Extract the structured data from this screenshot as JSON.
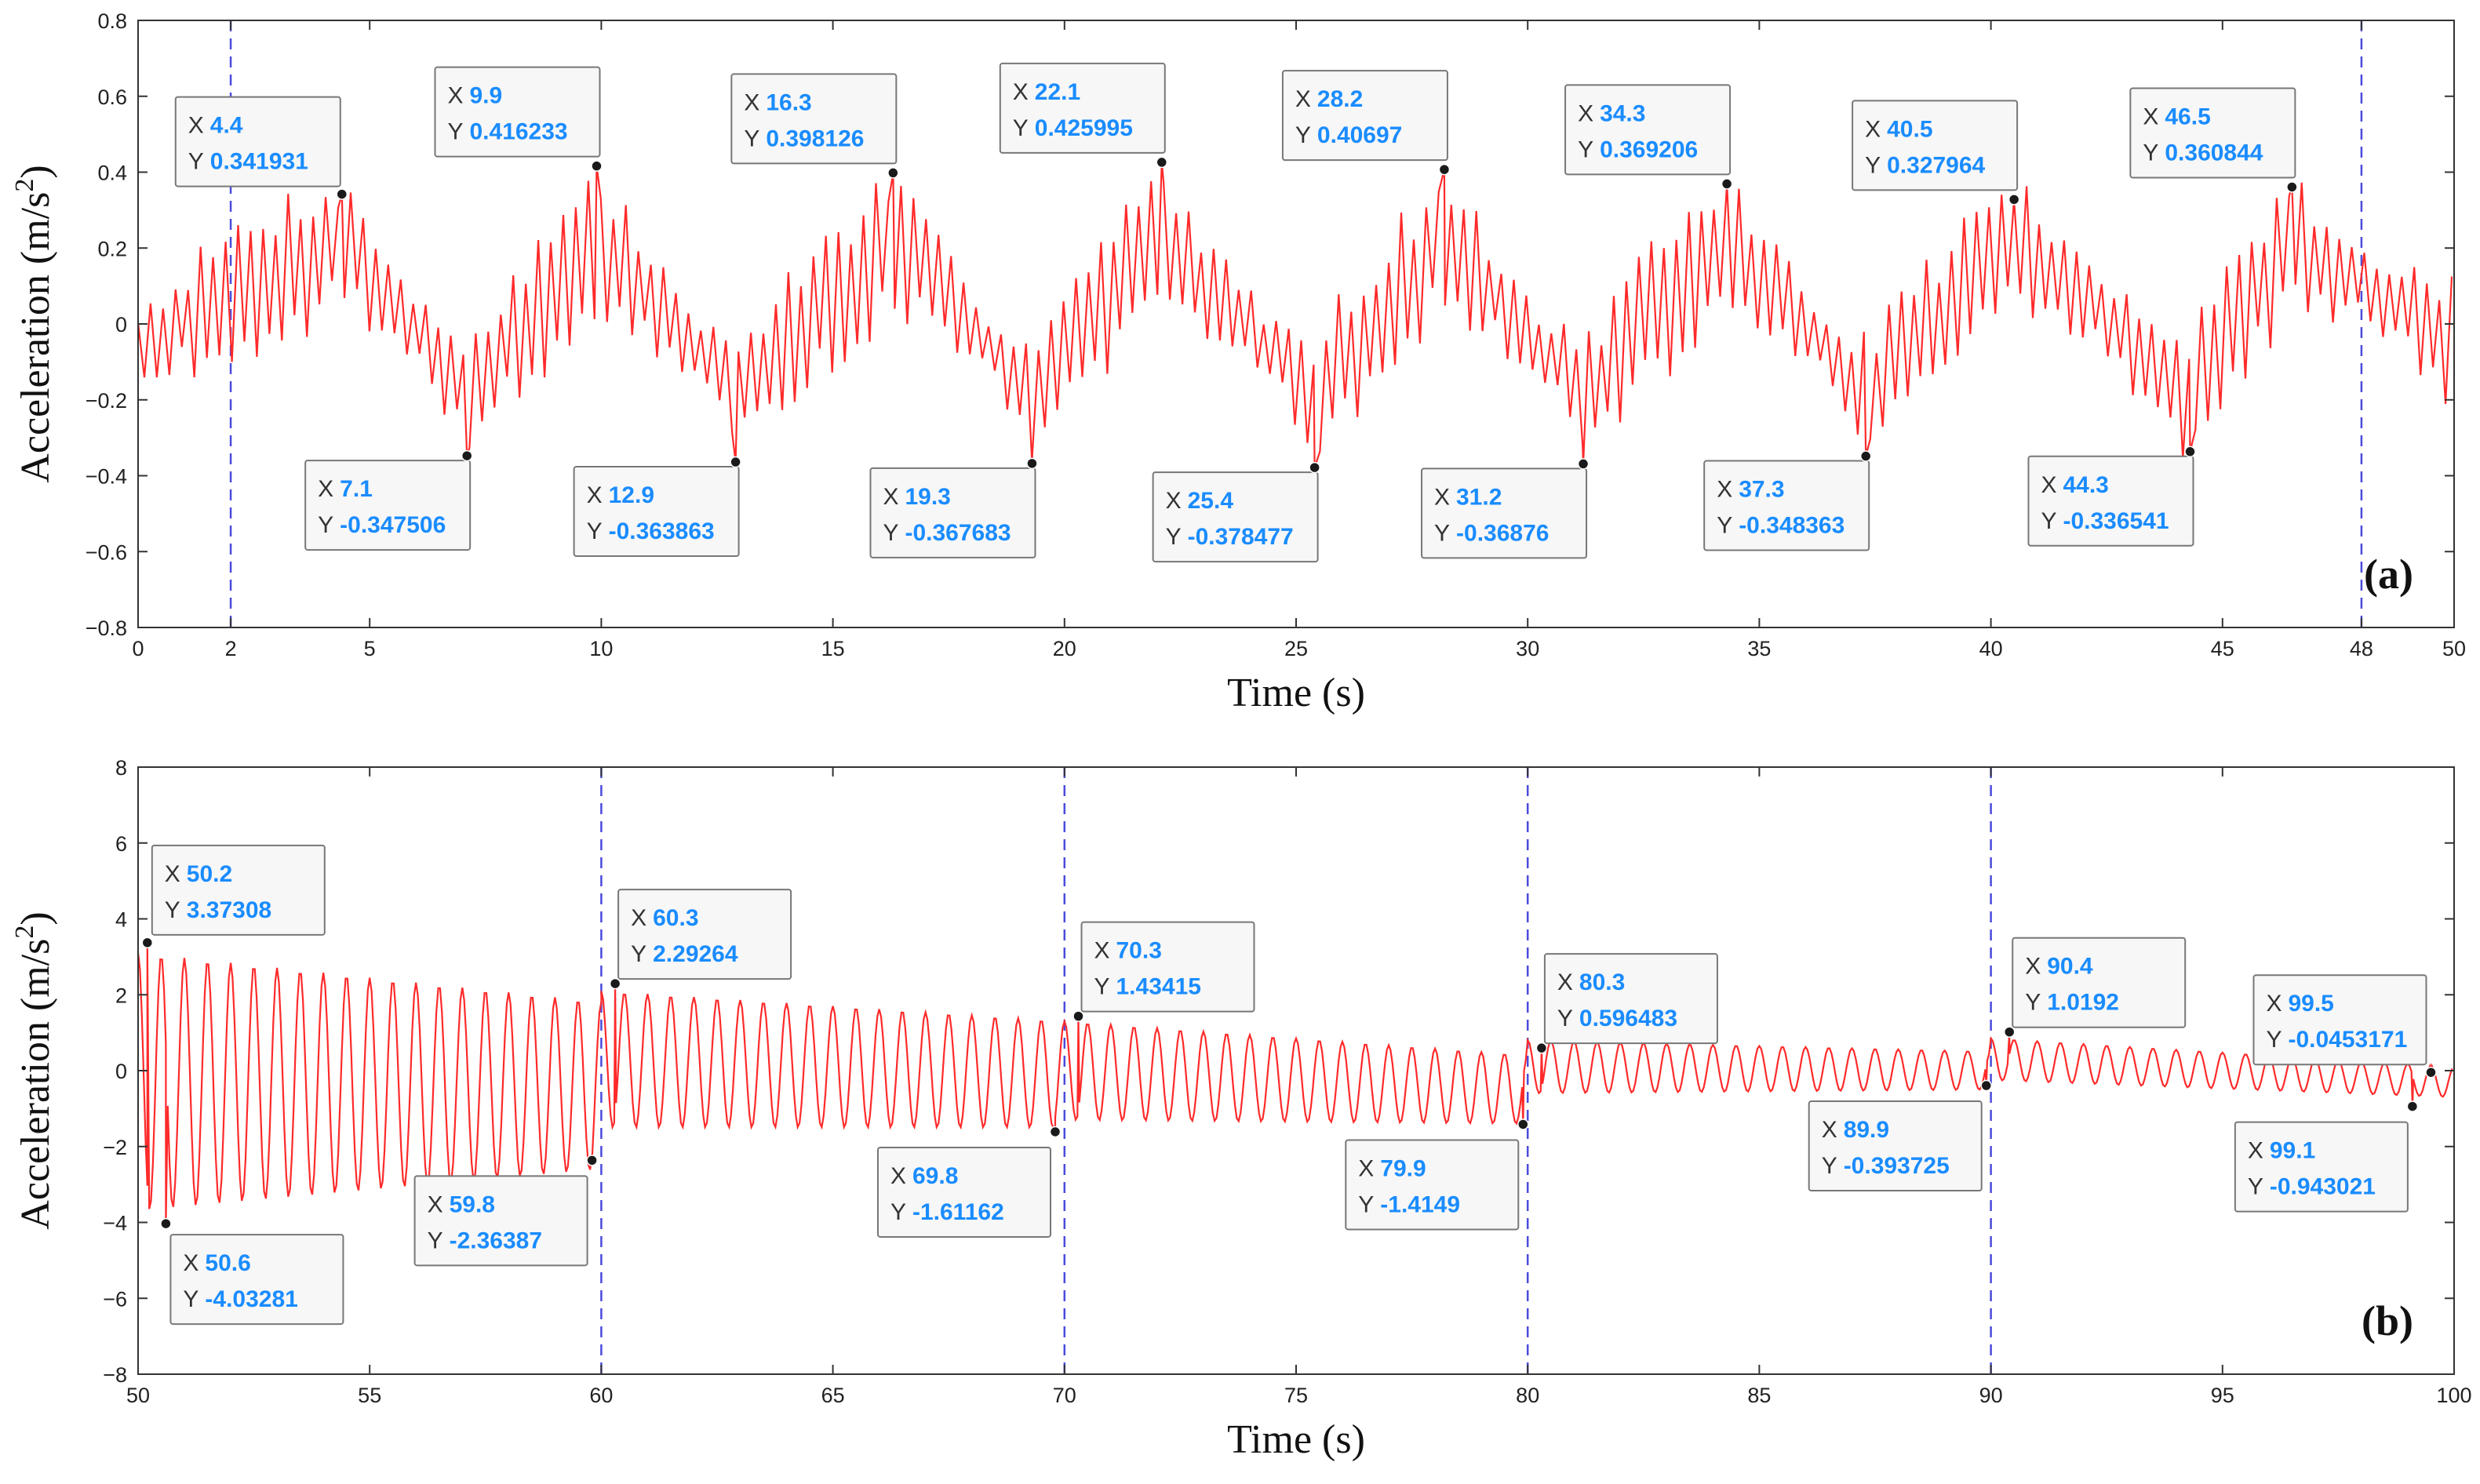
{
  "chart_data": [
    {
      "type": "line",
      "panel_label": "(a)",
      "xlabel": "Time (s)",
      "ylabel": "Acceleration (m/s",
      "ylabel_sup": "2",
      "ylabel_close": ")",
      "xlim": [
        0,
        50
      ],
      "ylim": [
        -0.8,
        0.8
      ],
      "xticks": [
        0,
        2,
        5,
        10,
        15,
        20,
        25,
        30,
        35,
        40,
        45,
        48,
        50
      ],
      "yticks": [
        -0.8,
        -0.6,
        -0.4,
        -0.2,
        0,
        0.2,
        0.4,
        0.6,
        0.8
      ],
      "ytick_labels": [
        "−0.8",
        "−0.6",
        "−0.4",
        "−0.2",
        "0",
        "0.2",
        "0.4",
        "0.6",
        "0.8"
      ],
      "vlines": [
        2,
        48
      ],
      "line_color": "#ff2a2a",
      "vline_color": "#4b4bdc",
      "signal": {
        "kind": "sawtooth-modulated",
        "carrier_period": 0.27,
        "x_end": 50
      },
      "datatips": [
        {
          "x": "4.4",
          "y": "0.341931",
          "xv": 4.4,
          "yv": 0.341931,
          "pos": "above"
        },
        {
          "x": "9.9",
          "y": "0.416233",
          "xv": 9.9,
          "yv": 0.416233,
          "pos": "above"
        },
        {
          "x": "16.3",
          "y": "0.398126",
          "xv": 16.3,
          "yv": 0.398126,
          "pos": "above"
        },
        {
          "x": "22.1",
          "y": "0.425995",
          "xv": 22.1,
          "yv": 0.425995,
          "pos": "above"
        },
        {
          "x": "28.2",
          "y": "0.40697",
          "xv": 28.2,
          "yv": 0.40697,
          "pos": "above"
        },
        {
          "x": "34.3",
          "y": "0.369206",
          "xv": 34.3,
          "yv": 0.369206,
          "pos": "above"
        },
        {
          "x": "40.5",
          "y": "0.327964",
          "xv": 40.5,
          "yv": 0.327964,
          "pos": "above"
        },
        {
          "x": "46.5",
          "y": "0.360844",
          "xv": 46.5,
          "yv": 0.360844,
          "pos": "above"
        },
        {
          "x": "7.1",
          "y": "-0.347506",
          "xv": 7.1,
          "yv": -0.347506,
          "pos": "below"
        },
        {
          "x": "12.9",
          "y": "-0.363863",
          "xv": 12.9,
          "yv": -0.363863,
          "pos": "below"
        },
        {
          "x": "19.3",
          "y": "-0.367683",
          "xv": 19.3,
          "yv": -0.367683,
          "pos": "below"
        },
        {
          "x": "25.4",
          "y": "-0.378477",
          "xv": 25.4,
          "yv": -0.378477,
          "pos": "below"
        },
        {
          "x": "31.2",
          "y": "-0.36876",
          "xv": 31.2,
          "yv": -0.36876,
          "pos": "below"
        },
        {
          "x": "37.3",
          "y": "-0.348363",
          "xv": 37.3,
          "yv": -0.348363,
          "pos": "below"
        },
        {
          "x": "44.3",
          "y": "-0.336541",
          "xv": 44.3,
          "yv": -0.336541,
          "pos": "below"
        }
      ]
    },
    {
      "type": "line",
      "panel_label": "(b)",
      "xlabel": "Time (s)",
      "ylabel": "Acceleration (m/s",
      "ylabel_sup": "2",
      "ylabel_close": ")",
      "xlim": [
        50,
        100
      ],
      "ylim": [
        -8,
        8
      ],
      "xticks": [
        50,
        55,
        60,
        65,
        70,
        75,
        80,
        85,
        90,
        95,
        100
      ],
      "yticks": [
        -8,
        -6,
        -4,
        -2,
        0,
        2,
        4,
        6,
        8
      ],
      "ytick_labels": [
        "−8",
        "−6",
        "−4",
        "−2",
        "0",
        "2",
        "4",
        "6",
        "8"
      ],
      "vlines": [
        60,
        70,
        80,
        90
      ],
      "line_color": "#ff2a2a",
      "vline_color": "#4b4bdc",
      "signal": {
        "kind": "decaying-oscillation",
        "carrier_period": 0.5,
        "x_end": 100
      },
      "datatips": [
        {
          "x": "50.2",
          "y": "3.37308",
          "xv": 50.2,
          "yv": 3.37308,
          "pos": "above"
        },
        {
          "x": "50.6",
          "y": "-4.03281",
          "xv": 50.6,
          "yv": -4.03281,
          "pos": "below"
        },
        {
          "x": "59.8",
          "y": "-2.36387",
          "xv": 59.8,
          "yv": -2.36387,
          "pos": "below-left"
        },
        {
          "x": "60.3",
          "y": "2.29264",
          "xv": 60.3,
          "yv": 2.29264,
          "pos": "above"
        },
        {
          "x": "69.8",
          "y": "-1.61162",
          "xv": 69.8,
          "yv": -1.61162,
          "pos": "below-left"
        },
        {
          "x": "70.3",
          "y": "1.43415",
          "xv": 70.3,
          "yv": 1.43415,
          "pos": "above"
        },
        {
          "x": "79.9",
          "y": "-1.4149",
          "xv": 79.9,
          "yv": -1.4149,
          "pos": "below-left"
        },
        {
          "x": "80.3",
          "y": "0.596483",
          "xv": 80.3,
          "yv": 0.596483,
          "pos": "above"
        },
        {
          "x": "89.9",
          "y": "-0.393725",
          "xv": 89.9,
          "yv": -0.393725,
          "pos": "below-left"
        },
        {
          "x": "90.4",
          "y": "1.0192",
          "xv": 90.4,
          "yv": 1.0192,
          "pos": "above"
        },
        {
          "x": "99.5",
          "y": "-0.0453171",
          "xv": 99.5,
          "yv": -0.0453171,
          "pos": "above-left"
        },
        {
          "x": "99.1",
          "y": "-0.943021",
          "xv": 99.1,
          "yv": -0.943021,
          "pos": "below-left"
        }
      ]
    }
  ]
}
